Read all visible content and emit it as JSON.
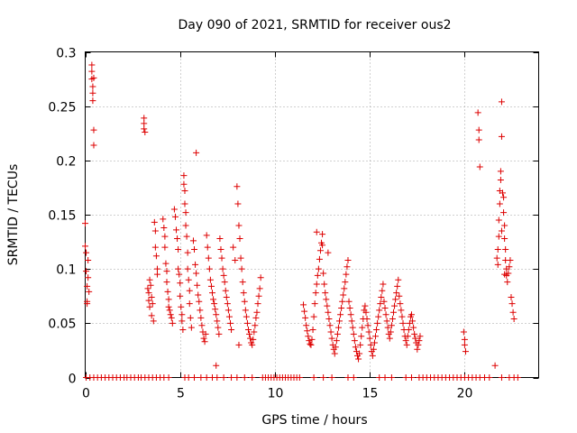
{
  "chart_data": {
    "type": "scatter",
    "title": "Day 090 of 2021, SRMTID for receiver ous2",
    "xlabel": "GPS time / hours",
    "ylabel": "SRMTID / TECUs",
    "xlim": [
      0,
      23.9
    ],
    "ylim": [
      0,
      0.3
    ],
    "x_ticks": [
      0,
      5,
      10,
      15,
      20
    ],
    "x_tick_labels": [
      "0",
      "5",
      "10",
      "15",
      "20"
    ],
    "y_ticks": [
      0,
      0.05,
      0.1,
      0.15,
      0.2,
      0.25,
      0.3
    ],
    "y_tick_labels": [
      "0",
      "0.05",
      "0.1",
      "0.15",
      "0.2",
      "0.25",
      "0.3"
    ],
    "grid": true,
    "marker": "plus",
    "marker_color": "#dd0000",
    "series": [
      {
        "name": "SRMTID",
        "x": [
          0.0,
          0.0,
          0.05,
          0.05,
          0.1,
          0.1,
          0.1,
          0.15,
          0.15,
          0.2,
          0.35,
          0.35,
          0.35,
          0.4,
          0.4,
          0.4,
          0.45,
          0.45,
          0.45,
          3.1,
          3.1,
          3.1,
          3.15,
          3.3,
          3.35,
          3.35,
          3.4,
          3.4,
          3.45,
          3.5,
          3.5,
          3.55,
          3.6,
          3.65,
          3.7,
          3.7,
          3.75,
          3.8,
          3.8,
          4.1,
          4.15,
          4.2,
          4.2,
          4.25,
          4.3,
          4.3,
          4.35,
          4.4,
          4.4,
          4.45,
          4.5,
          4.55,
          4.6,
          4.7,
          4.75,
          4.8,
          4.85,
          4.9,
          4.9,
          4.95,
          5.0,
          5.0,
          5.05,
          5.1,
          5.1,
          5.15,
          5.2,
          5.2,
          5.25,
          5.25,
          5.3,
          5.3,
          5.35,
          5.4,
          5.4,
          5.45,
          5.5,
          5.5,
          5.55,
          5.6,
          5.7,
          5.75,
          5.8,
          5.85,
          5.9,
          5.95,
          6.0,
          6.05,
          6.1,
          6.15,
          6.2,
          6.25,
          6.3,
          6.35,
          6.4,
          6.45,
          6.5,
          6.55,
          6.6,
          6.65,
          6.7,
          6.75,
          6.8,
          6.85,
          6.9,
          6.95,
          7.0,
          7.05,
          7.1,
          7.15,
          7.2,
          7.25,
          7.3,
          7.35,
          7.4,
          7.45,
          7.5,
          7.55,
          7.6,
          7.65,
          7.7,
          7.8,
          7.9,
          8.0,
          8.05,
          8.1,
          8.15,
          8.2,
          8.25,
          8.3,
          8.35,
          8.4,
          8.45,
          8.5,
          8.55,
          8.6,
          8.65,
          8.7,
          8.75,
          8.8,
          8.85,
          8.9,
          8.95,
          9.0,
          9.05,
          9.1,
          9.15,
          9.2,
          9.25,
          5.85,
          6.9,
          8.1,
          11.5,
          11.55,
          11.6,
          11.65,
          11.7,
          11.75,
          11.8,
          11.85,
          11.9,
          11.95,
          12.0,
          12.05,
          12.1,
          12.15,
          12.2,
          12.25,
          12.3,
          12.35,
          12.4,
          12.45,
          12.5,
          12.55,
          12.6,
          12.65,
          12.7,
          12.75,
          12.8,
          12.85,
          12.9,
          12.95,
          13.0,
          13.05,
          13.1,
          13.15,
          13.2,
          13.25,
          13.3,
          13.35,
          13.4,
          13.45,
          13.5,
          13.55,
          13.6,
          13.65,
          13.7,
          13.75,
          13.8,
          13.85,
          13.9,
          13.95,
          14.0,
          14.05,
          14.1,
          14.15,
          14.2,
          14.25,
          14.3,
          14.35,
          14.4,
          14.45,
          14.5,
          14.55,
          14.6,
          14.65,
          14.7,
          14.75,
          14.8,
          14.85,
          14.9,
          14.95,
          15.0,
          15.05,
          15.1,
          15.15,
          15.2,
          15.25,
          15.3,
          15.35,
          15.4,
          15.45,
          15.5,
          15.55,
          15.6,
          15.65,
          15.7,
          15.75,
          15.8,
          15.85,
          15.9,
          15.95,
          16.0,
          16.05,
          16.1,
          16.15,
          16.2,
          16.25,
          16.3,
          16.35,
          16.4,
          16.45,
          16.5,
          16.55,
          16.6,
          16.65,
          16.7,
          16.75,
          16.8,
          16.85,
          16.9,
          16.95,
          17.0,
          17.05,
          17.1,
          17.15,
          17.2,
          17.25,
          17.3,
          17.35,
          17.4,
          17.45,
          17.5,
          17.55,
          17.6,
          17.65,
          12.2,
          12.5,
          12.8,
          19.95,
          20.0,
          20.0,
          20.05,
          20.7,
          20.75,
          20.75,
          20.8,
          21.7,
          21.75,
          21.75,
          21.8,
          21.8,
          21.85,
          21.85,
          21.9,
          21.9,
          21.95,
          21.95,
          22.0,
          22.05,
          22.05,
          22.1,
          22.1,
          22.15,
          22.15,
          22.2,
          22.2,
          22.25,
          22.3,
          22.35,
          22.4,
          22.45,
          22.5,
          22.55,
          22.6,
          21.6,
          21.95,
          22.1,
          0.05,
          0.25,
          0.45,
          0.65,
          0.85,
          1.05,
          1.25,
          1.45,
          1.65,
          1.85,
          2.05,
          2.2,
          2.4,
          2.6,
          2.8,
          2.95,
          3.15,
          3.35,
          3.55,
          3.75,
          3.95,
          4.15,
          4.4,
          5.25,
          5.45,
          5.75,
          6.1,
          6.4,
          6.7,
          6.95,
          7.3,
          7.7,
          8.0,
          8.4,
          8.8,
          9.35,
          9.5,
          9.65,
          9.8,
          9.95,
          10.1,
          10.25,
          10.4,
          10.55,
          10.7,
          10.85,
          11.0,
          11.15,
          11.3,
          12.05,
          12.55,
          13.0,
          13.85,
          14.15,
          15.5,
          15.8,
          16.15,
          16.9,
          17.2,
          17.6,
          17.8,
          18.0,
          18.2,
          18.4,
          18.6,
          18.8,
          19.0,
          19.2,
          19.4,
          19.6,
          19.8,
          20.0,
          20.2,
          20.4,
          20.6,
          20.8,
          21.05,
          21.3,
          21.95,
          22.35,
          22.6,
          22.8
        ],
        "y": [
          0.142,
          0.121,
          0.115,
          0.098,
          0.084,
          0.07,
          0.068,
          0.092,
          0.108,
          0.079,
          0.288,
          0.282,
          0.275,
          0.268,
          0.262,
          0.255,
          0.228,
          0.214,
          0.276,
          0.239,
          0.234,
          0.229,
          0.226,
          0.082,
          0.078,
          0.071,
          0.065,
          0.09,
          0.085,
          0.074,
          0.057,
          0.068,
          0.052,
          0.143,
          0.135,
          0.12,
          0.112,
          0.1,
          0.095,
          0.146,
          0.138,
          0.13,
          0.12,
          0.105,
          0.098,
          0.088,
          0.079,
          0.072,
          0.065,
          0.062,
          0.058,
          0.055,
          0.05,
          0.155,
          0.148,
          0.136,
          0.128,
          0.118,
          0.1,
          0.095,
          0.087,
          0.075,
          0.065,
          0.058,
          0.052,
          0.044,
          0.186,
          0.178,
          0.172,
          0.16,
          0.152,
          0.14,
          0.13,
          0.115,
          0.1,
          0.09,
          0.08,
          0.068,
          0.055,
          0.046,
          0.126,
          0.118,
          0.104,
          0.096,
          0.085,
          0.076,
          0.07,
          0.062,
          0.055,
          0.048,
          0.042,
          0.036,
          0.033,
          0.04,
          0.131,
          0.12,
          0.11,
          0.1,
          0.09,
          0.084,
          0.078,
          0.072,
          0.068,
          0.063,
          0.058,
          0.052,
          0.046,
          0.04,
          0.128,
          0.118,
          0.11,
          0.1,
          0.094,
          0.088,
          0.08,
          0.074,
          0.068,
          0.062,
          0.056,
          0.05,
          0.044,
          0.12,
          0.108,
          0.176,
          0.16,
          0.14,
          0.128,
          0.11,
          0.1,
          0.088,
          0.078,
          0.07,
          0.062,
          0.056,
          0.05,
          0.044,
          0.04,
          0.036,
          0.032,
          0.03,
          0.035,
          0.042,
          0.048,
          0.055,
          0.06,
          0.068,
          0.075,
          0.082,
          0.092,
          0.207,
          0.011,
          0.03,
          0.067,
          0.061,
          0.055,
          0.048,
          0.043,
          0.038,
          0.034,
          0.031,
          0.03,
          0.035,
          0.044,
          0.056,
          0.068,
          0.078,
          0.086,
          0.094,
          0.1,
          0.109,
          0.117,
          0.124,
          0.132,
          0.096,
          0.086,
          0.078,
          0.072,
          0.066,
          0.06,
          0.054,
          0.048,
          0.042,
          0.036,
          0.03,
          0.026,
          0.022,
          0.028,
          0.034,
          0.04,
          0.046,
          0.052,
          0.058,
          0.064,
          0.07,
          0.076,
          0.082,
          0.088,
          0.095,
          0.102,
          0.108,
          0.07,
          0.064,
          0.058,
          0.052,
          0.046,
          0.04,
          0.034,
          0.028,
          0.024,
          0.02,
          0.017,
          0.022,
          0.03,
          0.038,
          0.046,
          0.054,
          0.062,
          0.066,
          0.06,
          0.054,
          0.048,
          0.042,
          0.036,
          0.03,
          0.024,
          0.02,
          0.026,
          0.032,
          0.038,
          0.044,
          0.05,
          0.056,
          0.062,
          0.068,
          0.074,
          0.08,
          0.086,
          0.07,
          0.064,
          0.058,
          0.052,
          0.046,
          0.04,
          0.036,
          0.042,
          0.048,
          0.054,
          0.06,
          0.066,
          0.072,
          0.078,
          0.084,
          0.09,
          0.075,
          0.068,
          0.062,
          0.056,
          0.05,
          0.044,
          0.038,
          0.034,
          0.03,
          0.038,
          0.044,
          0.05,
          0.056,
          0.058,
          0.052,
          0.046,
          0.04,
          0.036,
          0.032,
          0.026,
          0.03,
          0.034,
          0.038,
          0.134,
          0.122,
          0.115,
          0.042,
          0.035,
          0.03,
          0.024,
          0.244,
          0.228,
          0.219,
          0.194,
          0.11,
          0.104,
          0.118,
          0.13,
          0.145,
          0.16,
          0.172,
          0.182,
          0.19,
          0.254,
          0.222,
          0.17,
          0.166,
          0.152,
          0.14,
          0.128,
          0.118,
          0.108,
          0.1,
          0.094,
          0.088,
          0.096,
          0.102,
          0.108,
          0.074,
          0.068,
          0.06,
          0.054,
          0.011,
          0.135,
          0.095,
          0,
          0,
          0,
          0,
          0,
          0,
          0,
          0,
          0,
          0,
          0,
          0,
          0,
          0,
          0,
          0,
          0,
          0,
          0,
          0,
          0,
          0,
          0,
          0,
          0,
          0,
          0,
          0,
          0,
          0,
          0,
          0,
          0,
          0,
          0,
          0,
          0,
          0,
          0,
          0,
          0,
          0,
          0,
          0,
          0,
          0,
          0,
          0,
          0,
          0,
          0,
          0,
          0,
          0,
          0,
          0,
          0,
          0,
          0,
          0,
          0,
          0,
          0,
          0,
          0,
          0,
          0,
          0,
          0,
          0,
          0,
          0,
          0,
          0,
          0,
          0,
          0,
          0,
          0,
          0,
          0,
          0
        ]
      }
    ]
  }
}
